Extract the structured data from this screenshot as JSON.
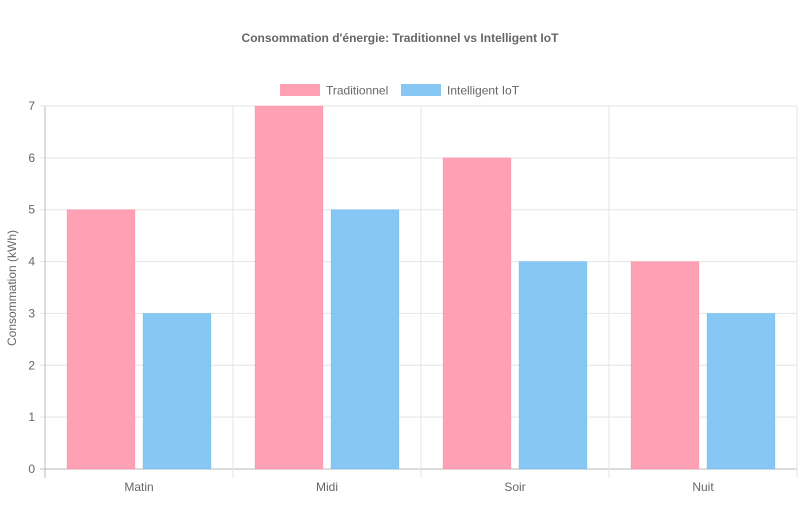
{
  "chart_data": {
    "type": "bar",
    "title": "Consommation d'énergie: Traditionnel vs Intelligent IoT",
    "xlabel": "",
    "ylabel": "Consommation (kWh)",
    "categories": [
      "Matin",
      "Midi",
      "Soir",
      "Nuit"
    ],
    "series": [
      {
        "name": "Traditionnel",
        "values": [
          5,
          7,
          6,
          4
        ],
        "color": "#ffa1b5",
        "border": "#ff6384"
      },
      {
        "name": "Intelligent IoT",
        "values": [
          3,
          5,
          4,
          3
        ],
        "color": "#86c7f3",
        "border": "#36a2eb"
      }
    ],
    "ylim": [
      0,
      7
    ],
    "yticks": [
      "0",
      "1",
      "2",
      "3",
      "4",
      "5",
      "6",
      "7"
    ],
    "grid": true,
    "legend_position": "top"
  }
}
